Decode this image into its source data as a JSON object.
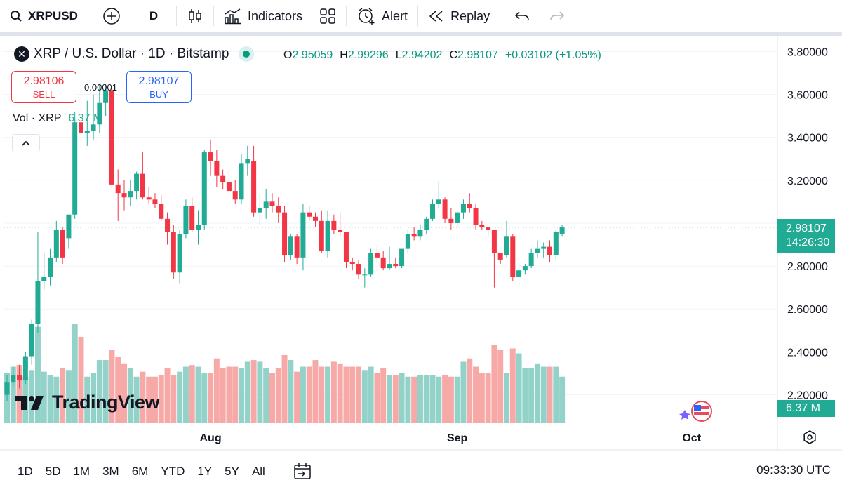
{
  "toolbar": {
    "symbol": "XRPUSD",
    "interval": "D",
    "indicators_label": "Indicators",
    "alert_label": "Alert",
    "replay_label": "Replay"
  },
  "legend": {
    "title": "XRP / U.S. Dollar · 1D · Bitstamp",
    "logo_letter": "✕",
    "open_key": "O",
    "open": "2.95059",
    "high_key": "H",
    "high": "2.99296",
    "low_key": "L",
    "low": "2.94202",
    "close_key": "C",
    "close": "2.98107",
    "change": "+0.03102 (+1.05%)"
  },
  "trade": {
    "sell_price": "2.98106",
    "sell_label": "SELL",
    "buy_price": "2.98107",
    "buy_label": "BUY",
    "spread": "0.00001"
  },
  "volume_legend": {
    "label": "Vol · XRP",
    "value": "6.37 M"
  },
  "watermark": "TradingView",
  "price_axis": {
    "ticks": [
      "3.80000",
      "3.60000",
      "3.40000",
      "3.20000",
      "2.98107",
      "2.80000",
      "2.60000",
      "2.40000",
      "2.20000"
    ],
    "current_price": "2.98107",
    "countdown": "14:26:30",
    "volume_label": "6.37 M"
  },
  "time_axis": {
    "labels": [
      "Aug",
      "Sep",
      "Oct"
    ]
  },
  "bottom": {
    "ranges": [
      "1D",
      "5D",
      "1M",
      "3M",
      "6M",
      "YTD",
      "1Y",
      "5Y",
      "All"
    ],
    "clock": "09:33:30 UTC"
  },
  "colors": {
    "up": "#22ab94",
    "down": "#f23645",
    "up_vol": "#92d2c9",
    "down_vol": "#f7a9a7"
  },
  "chart_data": {
    "type": "candlestick",
    "y_range": [
      2.12,
      3.86
    ],
    "candles": [
      {
        "o": 2.2,
        "h": 2.29,
        "l": 2.17,
        "c": 2.26
      },
      {
        "o": 2.26,
        "h": 2.33,
        "l": 2.24,
        "c": 2.29
      },
      {
        "o": 2.29,
        "h": 2.34,
        "l": 2.23,
        "c": 2.27
      },
      {
        "o": 2.27,
        "h": 2.4,
        "l": 2.25,
        "c": 2.38
      },
      {
        "o": 2.38,
        "h": 2.55,
        "l": 2.34,
        "c": 2.53
      },
      {
        "o": 2.53,
        "h": 2.96,
        "l": 2.49,
        "c": 2.73
      },
      {
        "o": 2.73,
        "h": 2.86,
        "l": 2.69,
        "c": 2.75
      },
      {
        "o": 2.75,
        "h": 2.88,
        "l": 2.71,
        "c": 2.84
      },
      {
        "o": 2.84,
        "h": 3.01,
        "l": 2.82,
        "c": 2.97
      },
      {
        "o": 2.97,
        "h": 2.98,
        "l": 2.81,
        "c": 2.84
      },
      {
        "o": 2.93,
        "h": 3.03,
        "l": 2.88,
        "c": 3.04
      },
      {
        "o": 3.04,
        "h": 3.52,
        "l": 3.02,
        "c": 3.47
      },
      {
        "o": 3.47,
        "h": 3.66,
        "l": 3.35,
        "c": 3.42
      },
      {
        "o": 3.42,
        "h": 3.57,
        "l": 3.36,
        "c": 3.43
      },
      {
        "o": 3.43,
        "h": 3.6,
        "l": 3.39,
        "c": 3.46
      },
      {
        "o": 3.46,
        "h": 3.65,
        "l": 3.42,
        "c": 3.56
      },
      {
        "o": 3.56,
        "h": 3.65,
        "l": 3.5,
        "c": 3.62
      },
      {
        "o": 3.62,
        "h": 3.64,
        "l": 3.16,
        "c": 3.18
      },
      {
        "o": 3.18,
        "h": 3.25,
        "l": 3.01,
        "c": 3.14
      },
      {
        "o": 3.14,
        "h": 3.2,
        "l": 3.06,
        "c": 3.12
      },
      {
        "o": 3.12,
        "h": 3.2,
        "l": 3.08,
        "c": 3.15
      },
      {
        "o": 3.15,
        "h": 3.24,
        "l": 3.11,
        "c": 3.23
      },
      {
        "o": 3.23,
        "h": 3.33,
        "l": 3.11,
        "c": 3.12
      },
      {
        "o": 3.12,
        "h": 3.17,
        "l": 3.09,
        "c": 3.11
      },
      {
        "o": 3.11,
        "h": 3.14,
        "l": 3.07,
        "c": 3.09
      },
      {
        "o": 3.09,
        "h": 3.13,
        "l": 3.01,
        "c": 3.02
      },
      {
        "o": 3.02,
        "h": 3.05,
        "l": 2.9,
        "c": 2.96
      },
      {
        "o": 2.96,
        "h": 2.99,
        "l": 2.74,
        "c": 2.77
      },
      {
        "o": 2.77,
        "h": 2.97,
        "l": 2.72,
        "c": 2.95
      },
      {
        "o": 2.95,
        "h": 3.11,
        "l": 2.93,
        "c": 3.08
      },
      {
        "o": 3.08,
        "h": 3.12,
        "l": 2.96,
        "c": 2.97
      },
      {
        "o": 2.97,
        "h": 3.06,
        "l": 2.9,
        "c": 2.99
      },
      {
        "o": 2.99,
        "h": 3.34,
        "l": 2.97,
        "c": 3.33
      },
      {
        "o": 3.33,
        "h": 3.39,
        "l": 3.22,
        "c": 3.29
      },
      {
        "o": 3.29,
        "h": 3.34,
        "l": 3.17,
        "c": 3.22
      },
      {
        "o": 3.22,
        "h": 3.25,
        "l": 3.16,
        "c": 3.19
      },
      {
        "o": 3.19,
        "h": 3.25,
        "l": 3.13,
        "c": 3.15
      },
      {
        "o": 3.15,
        "h": 3.2,
        "l": 3.09,
        "c": 3.11
      },
      {
        "o": 3.11,
        "h": 3.32,
        "l": 3.09,
        "c": 3.28
      },
      {
        "o": 3.28,
        "h": 3.36,
        "l": 3.22,
        "c": 3.3
      },
      {
        "o": 3.29,
        "h": 3.36,
        "l": 3.03,
        "c": 3.05
      },
      {
        "o": 3.05,
        "h": 3.14,
        "l": 2.99,
        "c": 3.07
      },
      {
        "o": 3.07,
        "h": 3.16,
        "l": 3.02,
        "c": 3.1
      },
      {
        "o": 3.1,
        "h": 3.14,
        "l": 3.05,
        "c": 3.08
      },
      {
        "o": 3.08,
        "h": 3.12,
        "l": 3.0,
        "c": 3.05
      },
      {
        "o": 3.05,
        "h": 3.08,
        "l": 2.82,
        "c": 2.85
      },
      {
        "o": 2.85,
        "h": 2.95,
        "l": 2.83,
        "c": 2.94
      },
      {
        "o": 2.94,
        "h": 2.95,
        "l": 2.81,
        "c": 2.84
      },
      {
        "o": 2.84,
        "h": 3.09,
        "l": 2.78,
        "c": 3.05
      },
      {
        "o": 3.05,
        "h": 3.08,
        "l": 3.01,
        "c": 3.03
      },
      {
        "o": 3.03,
        "h": 3.05,
        "l": 2.98,
        "c": 3.01
      },
      {
        "o": 3.01,
        "h": 3.06,
        "l": 2.86,
        "c": 2.87
      },
      {
        "o": 2.87,
        "h": 3.06,
        "l": 2.84,
        "c": 3.01
      },
      {
        "o": 3.01,
        "h": 3.04,
        "l": 2.95,
        "c": 2.97
      },
      {
        "o": 2.97,
        "h": 3.05,
        "l": 2.94,
        "c": 2.96
      },
      {
        "o": 2.96,
        "h": 2.96,
        "l": 2.79,
        "c": 2.82
      },
      {
        "o": 2.82,
        "h": 2.84,
        "l": 2.78,
        "c": 2.81
      },
      {
        "o": 2.81,
        "h": 2.83,
        "l": 2.74,
        "c": 2.76
      },
      {
        "o": 2.76,
        "h": 2.79,
        "l": 2.7,
        "c": 2.76
      },
      {
        "o": 2.76,
        "h": 2.88,
        "l": 2.75,
        "c": 2.86
      },
      {
        "o": 2.86,
        "h": 2.89,
        "l": 2.82,
        "c": 2.84
      },
      {
        "o": 2.84,
        "h": 2.87,
        "l": 2.78,
        "c": 2.79
      },
      {
        "o": 2.79,
        "h": 2.89,
        "l": 2.78,
        "c": 2.81
      },
      {
        "o": 2.81,
        "h": 2.84,
        "l": 2.79,
        "c": 2.8
      },
      {
        "o": 2.8,
        "h": 2.88,
        "l": 2.79,
        "c": 2.88
      },
      {
        "o": 2.88,
        "h": 2.97,
        "l": 2.86,
        "c": 2.95
      },
      {
        "o": 2.95,
        "h": 2.98,
        "l": 2.92,
        "c": 2.94
      },
      {
        "o": 2.94,
        "h": 2.99,
        "l": 2.92,
        "c": 2.97
      },
      {
        "o": 2.97,
        "h": 3.03,
        "l": 2.95,
        "c": 3.02
      },
      {
        "o": 3.02,
        "h": 3.11,
        "l": 3.01,
        "c": 3.09
      },
      {
        "o": 3.09,
        "h": 3.19,
        "l": 3.07,
        "c": 3.11
      },
      {
        "o": 3.11,
        "h": 3.12,
        "l": 3.0,
        "c": 3.02
      },
      {
        "o": 3.02,
        "h": 3.07,
        "l": 2.97,
        "c": 3.0
      },
      {
        "o": 3.0,
        "h": 3.06,
        "l": 2.98,
        "c": 3.05
      },
      {
        "o": 3.05,
        "h": 3.11,
        "l": 3.02,
        "c": 3.09
      },
      {
        "o": 3.09,
        "h": 3.14,
        "l": 3.05,
        "c": 3.07
      },
      {
        "o": 3.07,
        "h": 3.09,
        "l": 2.97,
        "c": 2.99
      },
      {
        "o": 2.99,
        "h": 3.01,
        "l": 2.97,
        "c": 2.98
      },
      {
        "o": 2.98,
        "h": 2.98,
        "l": 2.94,
        "c": 2.97
      },
      {
        "o": 2.97,
        "h": 2.97,
        "l": 2.7,
        "c": 2.86
      },
      {
        "o": 2.86,
        "h": 2.86,
        "l": 2.81,
        "c": 2.83
      },
      {
        "o": 2.85,
        "h": 3.01,
        "l": 2.84,
        "c": 2.94
      },
      {
        "o": 2.94,
        "h": 2.95,
        "l": 2.73,
        "c": 2.75
      },
      {
        "o": 2.75,
        "h": 2.81,
        "l": 2.71,
        "c": 2.78
      },
      {
        "o": 2.78,
        "h": 2.81,
        "l": 2.76,
        "c": 2.8
      },
      {
        "o": 2.8,
        "h": 2.88,
        "l": 2.79,
        "c": 2.86
      },
      {
        "o": 2.86,
        "h": 2.92,
        "l": 2.84,
        "c": 2.88
      },
      {
        "o": 2.88,
        "h": 2.91,
        "l": 2.84,
        "c": 2.89
      },
      {
        "o": 2.89,
        "h": 2.92,
        "l": 2.82,
        "c": 2.85
      },
      {
        "o": 2.85,
        "h": 2.97,
        "l": 2.83,
        "c": 2.96
      },
      {
        "o": 2.95,
        "h": 2.99,
        "l": 2.94,
        "c": 2.98
      }
    ],
    "volume_max": 60,
    "volumes": [
      30,
      34,
      35,
      28,
      32,
      58,
      31,
      29,
      28,
      33,
      32,
      60,
      52,
      28,
      30,
      38,
      38,
      44,
      40,
      36,
      33,
      28,
      31,
      28,
      28,
      29,
      33,
      29,
      31,
      34,
      35,
      34,
      30,
      30,
      39,
      33,
      34,
      34,
      33,
      37,
      38,
      37,
      33,
      30,
      33,
      41,
      38,
      31,
      34,
      34,
      38,
      34,
      34,
      37,
      36,
      34,
      34,
      34,
      32,
      34,
      30,
      33,
      29,
      29,
      30,
      28,
      28,
      29,
      29,
      29,
      28,
      29,
      28,
      28,
      37,
      39,
      34,
      30,
      30,
      47,
      44,
      30,
      45,
      42,
      33,
      33,
      36,
      34,
      34,
      34,
      28
    ]
  }
}
